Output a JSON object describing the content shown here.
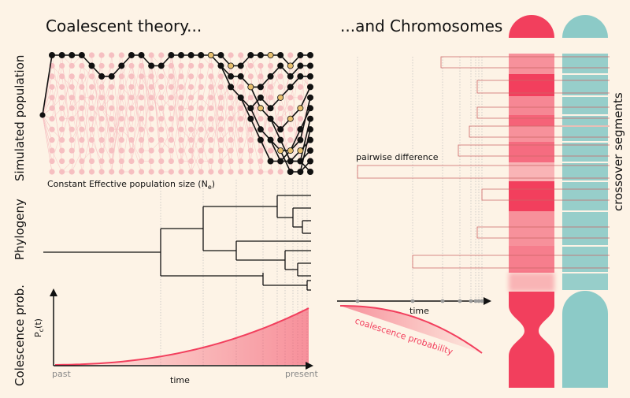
{
  "titles": {
    "left": "Coalescent theory...",
    "right": "...and Chromosomes"
  },
  "side_labels": {
    "population": "Simulated population",
    "phylogeny": "Phylogeny",
    "coalescence": "Colescence prob.",
    "crossover": "crossover segments"
  },
  "population": {
    "caption_main": "Constant Effective population size (N",
    "caption_sub": "e",
    "caption_end": ")",
    "columns": 27,
    "rows": 12
  },
  "phylogeny": {
    "leaves": 12
  },
  "coalescence_plot": {
    "y_label_main": "P",
    "y_label_sub": "c",
    "y_label_end": "(t)",
    "x_label": "time",
    "x_left": "past",
    "x_right": "present"
  },
  "chromosome_panel": {
    "pairwise_label": "pairwise difference",
    "time_label": "time",
    "prob_label": "coalescence probability"
  },
  "colors": {
    "red": "#f23f5d",
    "light_red": "#f6a1a8",
    "teal": "#8ccac7",
    "background": "#fdf3e6",
    "dot": "#f6bfc1",
    "gold": "#e8c06e"
  },
  "icons": [
    "chromosome-red-icon",
    "chromosome-teal-icon"
  ]
}
